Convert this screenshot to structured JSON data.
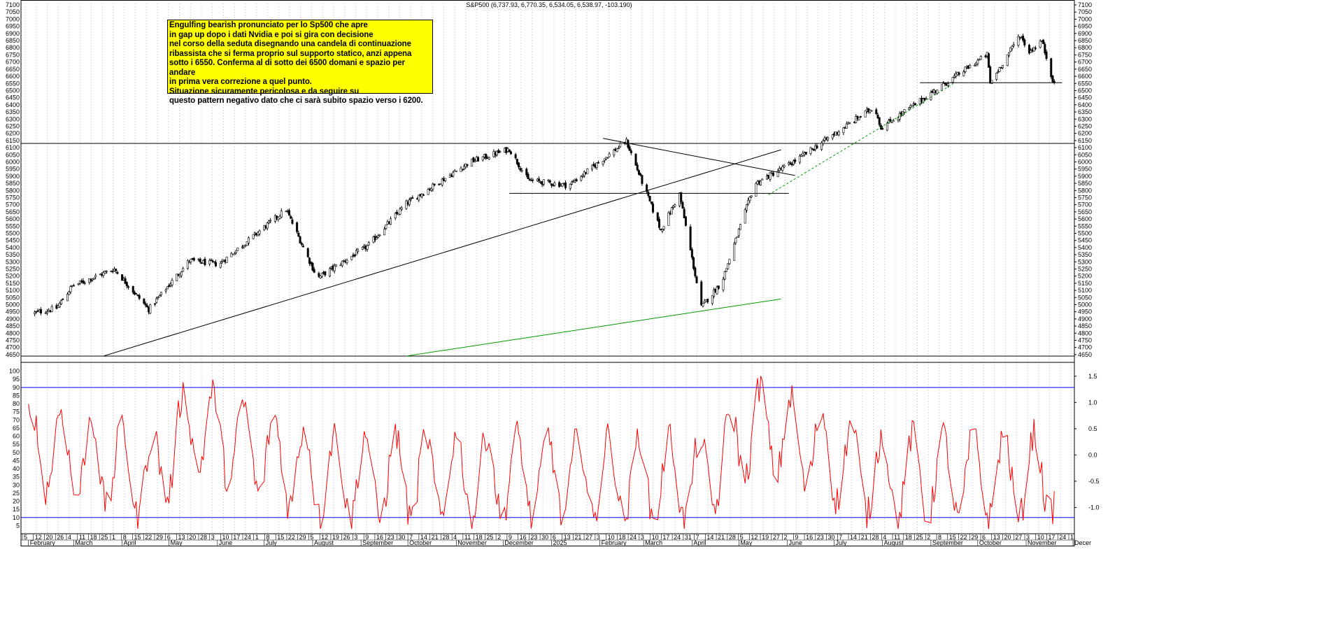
{
  "chart_data": {
    "type": "candlestick",
    "title": "S&P500 (6,737.93, 6,770.35, 6,534.05, 6,538.97, -103.190)",
    "price_axis": {
      "range": [
        4625,
        7110
      ],
      "tick_step": 50,
      "tick_labels": [
        "7100",
        "7050",
        "7000",
        "6950",
        "6900",
        "6850",
        "6800",
        "6750",
        "6700",
        "6650",
        "6600",
        "6550",
        "6500",
        "6450",
        "6400",
        "6350",
        "6300",
        "6250",
        "6200",
        "6150",
        "6100",
        "6050",
        "6000",
        "5950",
        "5900",
        "5850",
        "5800",
        "5750",
        "5700",
        "5650",
        "5600",
        "5550",
        "5500",
        "5450",
        "5400",
        "5350",
        "5300",
        "5250",
        "5200",
        "5150",
        "5100",
        "5050",
        "5000",
        "4950",
        "4900",
        "4850",
        "4800",
        "4750",
        "4700",
        "4650"
      ]
    },
    "indicator_axis_left": {
      "range": [
        0,
        105
      ],
      "tick_labels": [
        "100",
        "95",
        "90",
        "85",
        "80",
        "75",
        "70",
        "65",
        "60",
        "55",
        "50",
        "45",
        "40",
        "35",
        "30",
        "25",
        "20",
        "15",
        "10",
        "5"
      ]
    },
    "indicator_axis_right": {
      "range": [
        -1.5,
        1.75
      ],
      "tick_labels": [
        "1.5",
        "1.0",
        "0.5",
        "0.0",
        "-0.5",
        "-1.0"
      ]
    },
    "indicator_levels": [
      90,
      10
    ],
    "horizontal_levels": [
      {
        "value": 6130,
        "color": "#000000"
      },
      {
        "value": 4640,
        "color": "#000000"
      }
    ],
    "annotation_text": "Engulfing bearish pronunciato per lo Sp500 che apre\nin gap up dopo i dati Nvidia e poi si gira con decisione\nnel corso della seduta disegnando una candela di continuazione\nribassista che si ferma proprio sul supporto statico, anzi appena\nsotto i 6550. Conferma al di sotto dei 6500 domani e spazio per andare\nin prima vera correzione a quel punto.\nSituazione sicuramente pericolosa e da seguire su\nquesto pattern negativo dato che ci sarà subito spazio verso i 6200.",
    "x_axis": {
      "day_labels": [
        "5",
        "12",
        "20",
        "26",
        "4",
        "11",
        "18",
        "25",
        "1",
        "8",
        "15",
        "22",
        "29",
        "6",
        "13",
        "20",
        "28",
        "3",
        "10",
        "17",
        "24",
        "1",
        "8",
        "15",
        "22",
        "29",
        "5",
        "12",
        "19",
        "26",
        "3",
        "9",
        "16",
        "23",
        "30",
        "7",
        "14",
        "21",
        "28",
        "4",
        "11",
        "18",
        "25",
        "2",
        "9",
        "16",
        "23",
        "30",
        "6",
        "13",
        "21",
        "27",
        "3",
        "10",
        "18",
        "24",
        "3",
        "10",
        "17",
        "24",
        "31",
        "7",
        "14",
        "21",
        "28",
        "5",
        "12",
        "19",
        "27",
        "2",
        "9",
        "16",
        "23",
        "30",
        "7",
        "14",
        "21",
        "28",
        "4",
        "11",
        "18",
        "25",
        "2",
        "8",
        "15",
        "22",
        "29",
        "6",
        "13",
        "20",
        "27",
        "3",
        "10",
        "17",
        "24",
        "1"
      ],
      "month_labels": [
        "February",
        "March",
        "April",
        "May",
        "June",
        "July",
        "August",
        "September",
        "October",
        "November",
        "December",
        "2025",
        "February",
        "March",
        "April",
        "May",
        "June",
        "July",
        "August",
        "September",
        "October",
        "November",
        "Decer"
      ]
    },
    "price_series": {
      "color": "#000000",
      "checkpoints": [
        {
          "date": "2024-02-05",
          "close": 4940
        },
        {
          "date": "2024-02-20",
          "close": 4975
        },
        {
          "date": "2024-03-01",
          "close": 5130
        },
        {
          "date": "2024-03-28",
          "close": 5250
        },
        {
          "date": "2024-04-19",
          "close": 4967
        },
        {
          "date": "2024-05-15",
          "close": 5308
        },
        {
          "date": "2024-06-03",
          "close": 5283
        },
        {
          "date": "2024-07-16",
          "close": 5667
        },
        {
          "date": "2024-08-05",
          "close": 5186
        },
        {
          "date": "2024-09-06",
          "close": 5408
        },
        {
          "date": "2024-10-01",
          "close": 5708
        },
        {
          "date": "2024-11-11",
          "close": 6001
        },
        {
          "date": "2024-12-06",
          "close": 6090
        },
        {
          "date": "2024-12-18",
          "close": 5872
        },
        {
          "date": "2025-01-13",
          "close": 5836
        },
        {
          "date": "2025-02-19",
          "close": 6144
        },
        {
          "date": "2025-03-13",
          "close": 5521
        },
        {
          "date": "2025-03-25",
          "close": 5776
        },
        {
          "date": "2025-04-08",
          "close": 4982
        },
        {
          "date": "2025-04-21",
          "close": 5158
        },
        {
          "date": "2025-05-12",
          "close": 5844
        },
        {
          "date": "2025-06-06",
          "close": 6000
        },
        {
          "date": "2025-07-28",
          "close": 6389
        },
        {
          "date": "2025-08-01",
          "close": 6238
        },
        {
          "date": "2025-10-08",
          "close": 6753
        },
        {
          "date": "2025-10-10",
          "close": 6552
        },
        {
          "date": "2025-10-29",
          "close": 6890
        },
        {
          "date": "2025-11-04",
          "close": 6771
        },
        {
          "date": "2025-11-12",
          "close": 6850
        },
        {
          "date": "2025-11-20",
          "close": 6538.97
        }
      ]
    },
    "trendlines": [
      {
        "name": "long-uptrend",
        "color": "#000000",
        "style": "solid",
        "from": {
          "date": "2024-03-20",
          "value": 4640
        },
        "to": {
          "date": "2025-05-28",
          "value": 6085
        }
      },
      {
        "name": "descending-resistance",
        "color": "#000000",
        "style": "solid",
        "from": {
          "date": "2025-02-03",
          "value": 6165
        },
        "to": {
          "date": "2025-06-06",
          "value": 5905
        }
      },
      {
        "name": "support-5780",
        "color": "#000000",
        "style": "solid",
        "from": {
          "date": "2024-12-05",
          "value": 5780
        },
        "to": {
          "date": "2025-06-02",
          "value": 5780
        }
      },
      {
        "name": "support-6555",
        "color": "#000000",
        "style": "solid",
        "from": {
          "date": "2025-08-25",
          "value": 6555
        },
        "to": {
          "date": "2025-11-24",
          "value": 6555
        }
      },
      {
        "name": "dashed-uptrend",
        "color": "#009900",
        "style": "dashed",
        "from": {
          "date": "2025-05-20",
          "value": 5770
        },
        "to": {
          "date": "2025-09-15",
          "value": 6545
        }
      },
      {
        "name": "green-long-support",
        "color": "#009900",
        "style": "solid",
        "from": {
          "date": "2024-09-30",
          "value": 4640
        },
        "to": {
          "date": "2025-05-28",
          "value": 5040
        }
      }
    ],
    "indicator_series": {
      "color": "#ff0000",
      "checkpoints": [
        {
          "date": "2024-02-01",
          "value": 68
        },
        {
          "date": "2024-04-19",
          "value": 5
        },
        {
          "date": "2024-05-15",
          "value": 97
        },
        {
          "date": "2024-08-05",
          "value": 10
        },
        {
          "date": "2024-09-06",
          "value": 8
        },
        {
          "date": "2024-12-18",
          "value": 7
        },
        {
          "date": "2025-03-13",
          "value": 3
        },
        {
          "date": "2025-04-08",
          "value": 5
        },
        {
          "date": "2025-05-12",
          "value": 97
        },
        {
          "date": "2025-08-01",
          "value": 6
        },
        {
          "date": "2025-10-10",
          "value": 8
        },
        {
          "date": "2025-11-20",
          "value": 10
        }
      ]
    }
  }
}
